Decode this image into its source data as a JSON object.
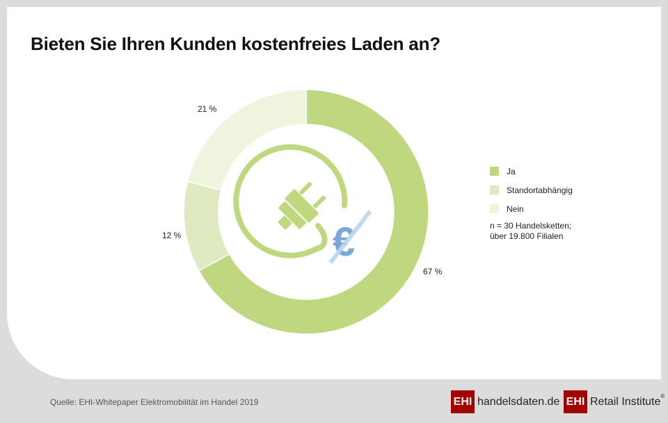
{
  "chart_data": {
    "type": "pie",
    "variant": "donut",
    "title": "Bieten Sie Ihren Kunden kostenfreies Laden an?",
    "categories": [
      "Ja",
      "Standortabhängig",
      "Nein"
    ],
    "values": [
      67,
      12,
      21
    ],
    "value_labels": [
      "67 %",
      "12 %",
      "21 %"
    ],
    "colors": [
      "#bfd77f",
      "#dfeac2",
      "#eef4de"
    ],
    "legend": [
      "Ja",
      "Standortabhängig",
      "Nein"
    ],
    "legend_position": "right",
    "start_angle": "top, clockwise"
  },
  "note": {
    "line1": "n = 30 Handelsketten;",
    "line2": "über 19.800 Filialen"
  },
  "center_icon": {
    "name": "plug-no-euro-icon",
    "plug_color": "#bfd77f",
    "euro_color": "#7aa7dc",
    "strike_color": "#bcd4ee",
    "glyph": "€"
  },
  "footer": {
    "source": "Quelle: EHI-Whitepaper Elektromobilität im Handel 2019",
    "logo1_box": "EHI",
    "logo1_text": "handelsdaten",
    "logo1_dot": ".",
    "logo1_tld": "de",
    "logo2_box": "EHI",
    "logo2_text": "Retail Institute",
    "logo2_reg": "®"
  }
}
